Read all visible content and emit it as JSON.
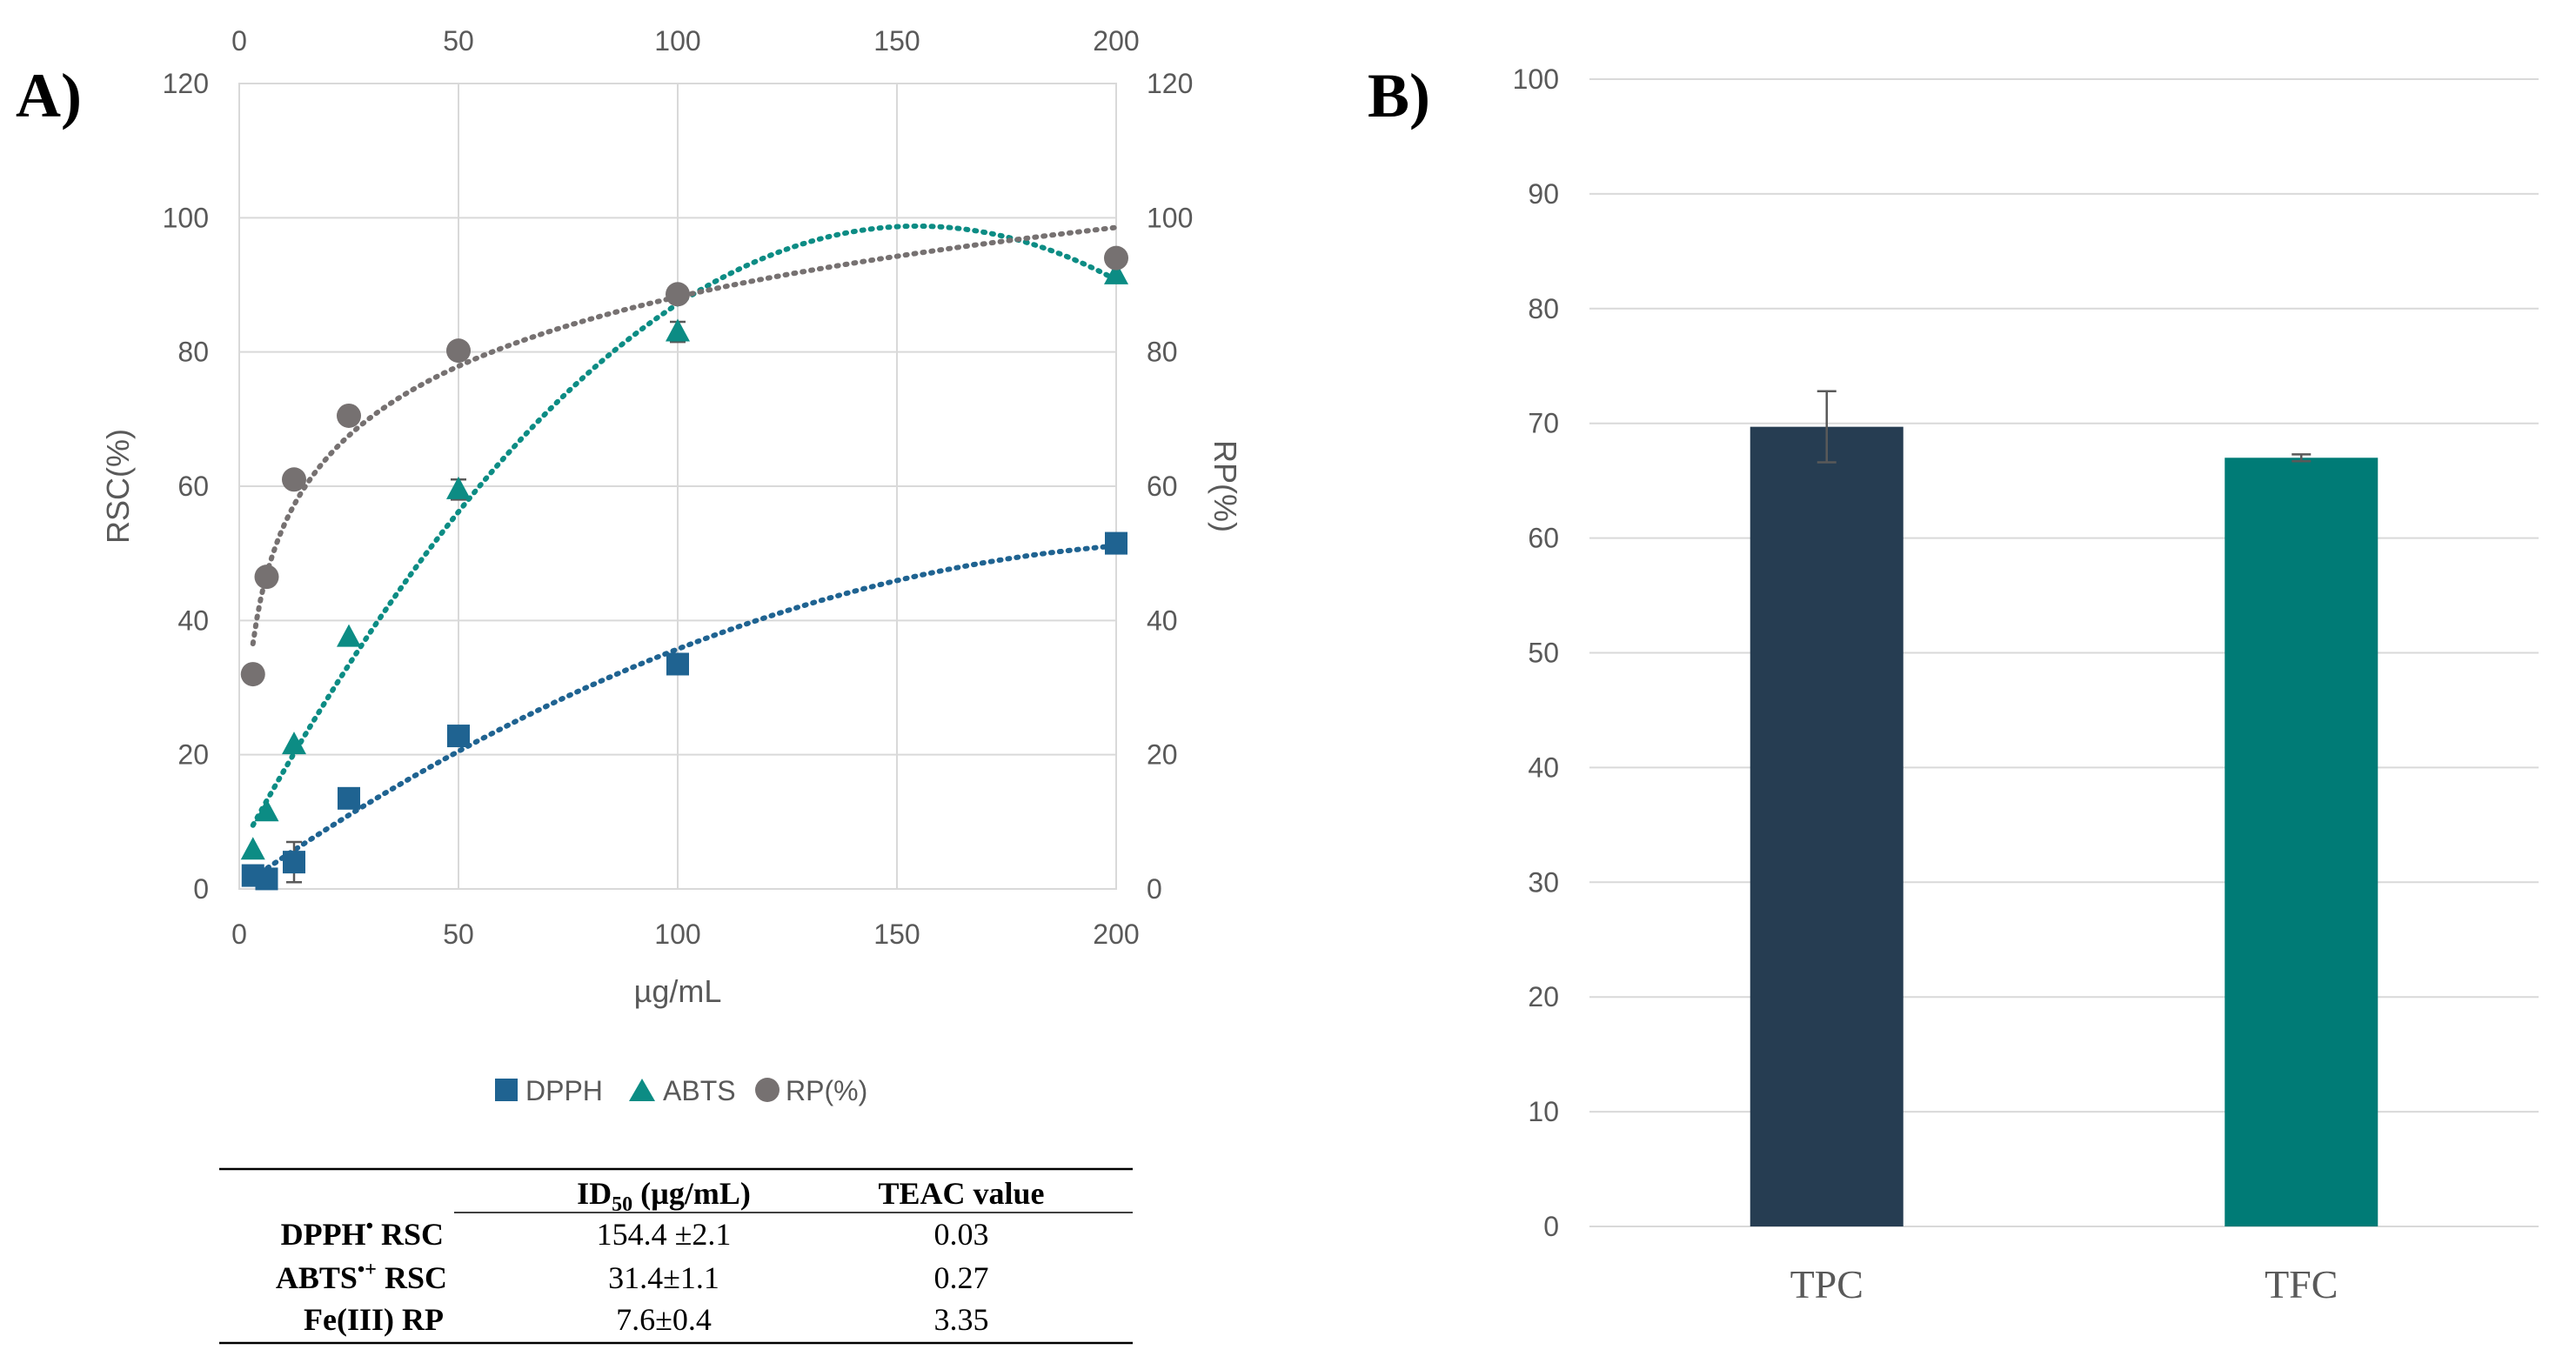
{
  "panel_a": {
    "label": "A)",
    "legend": [
      {
        "name": "DPPH",
        "marker": "square"
      },
      {
        "name": "ABTS",
        "marker": "triangle"
      },
      {
        "name": "RP(%)",
        "marker": "circle"
      }
    ],
    "table": {
      "headers": [
        "",
        "ID",
        "50",
        " (µg/mL)",
        "TEAC value"
      ],
      "rows": [
        {
          "label_main": "DPPH",
          "label_sup": "•",
          "label_rest": " RSC",
          "id50": "154.4 ±2.1",
          "teac": "0.03"
        },
        {
          "label_main": "ABTS",
          "label_sup": "•+",
          "label_rest": " RSC",
          "id50": "31.4±1.1",
          "teac": "0.27"
        },
        {
          "label_main": "Fe(III) RP",
          "label_sup": "",
          "label_rest": "",
          "id50": "7.6±0.4",
          "teac": "3.35"
        }
      ]
    }
  },
  "panel_b": {
    "label": "B)"
  },
  "colors": {
    "dpph": "#1F6391",
    "abts": "#0C8C84",
    "rp": "#767171",
    "tpc": "#263D52",
    "tfc": "#007B76",
    "grid": "#D9D9D9",
    "axis_text": "#595959"
  },
  "chart_data": [
    {
      "type": "scatter",
      "title": "",
      "xlabel": "µg/mL",
      "ylabel": "RSC(%)",
      "y2label": "RP(%)",
      "xlim": [
        0,
        200
      ],
      "ylim": [
        0,
        120
      ],
      "y2lim": [
        0,
        120
      ],
      "xticks": [
        0,
        50,
        100,
        150,
        200
      ],
      "yticks": [
        0,
        20,
        40,
        60,
        80,
        100,
        120
      ],
      "legend_position": "bottom",
      "series": [
        {
          "name": "DPPH",
          "axis": "left",
          "x": [
            3.125,
            6.25,
            12.5,
            25,
            50,
            100,
            200
          ],
          "values": [
            2.0,
            1.5,
            4.0,
            13.5,
            22.8,
            33.5,
            51.5
          ],
          "errors": [
            0,
            0,
            3.0,
            0,
            0,
            0,
            0
          ],
          "trend": "polynomial"
        },
        {
          "name": "ABTS",
          "axis": "left",
          "x": [
            3.125,
            6.25,
            12.5,
            25,
            50,
            100,
            200
          ],
          "values": [
            5.8,
            11.5,
            21.5,
            37.5,
            59.5,
            83.0,
            91.5
          ],
          "errors": [
            0,
            0,
            0,
            0,
            1.5,
            1.5,
            0
          ],
          "trend": "polynomial"
        },
        {
          "name": "RP(%)",
          "axis": "right",
          "x": [
            3.125,
            6.25,
            12.5,
            25,
            50,
            100,
            200
          ],
          "values": [
            32.0,
            46.5,
            61.0,
            70.5,
            80.2,
            88.6,
            94.0
          ],
          "errors": [
            0,
            0,
            0,
            0,
            0,
            0,
            0
          ],
          "trend": "logarithmic"
        }
      ]
    },
    {
      "type": "bar",
      "title": "",
      "categories": [
        "TPC",
        "TFC"
      ],
      "values": [
        69.7,
        67.0
      ],
      "errors": [
        3.1,
        0.3
      ],
      "ylim": [
        0,
        100
      ],
      "yticks": [
        0,
        10,
        20,
        30,
        40,
        50,
        60,
        70,
        80,
        90,
        100
      ],
      "xlabel": "",
      "ylabel": ""
    }
  ]
}
